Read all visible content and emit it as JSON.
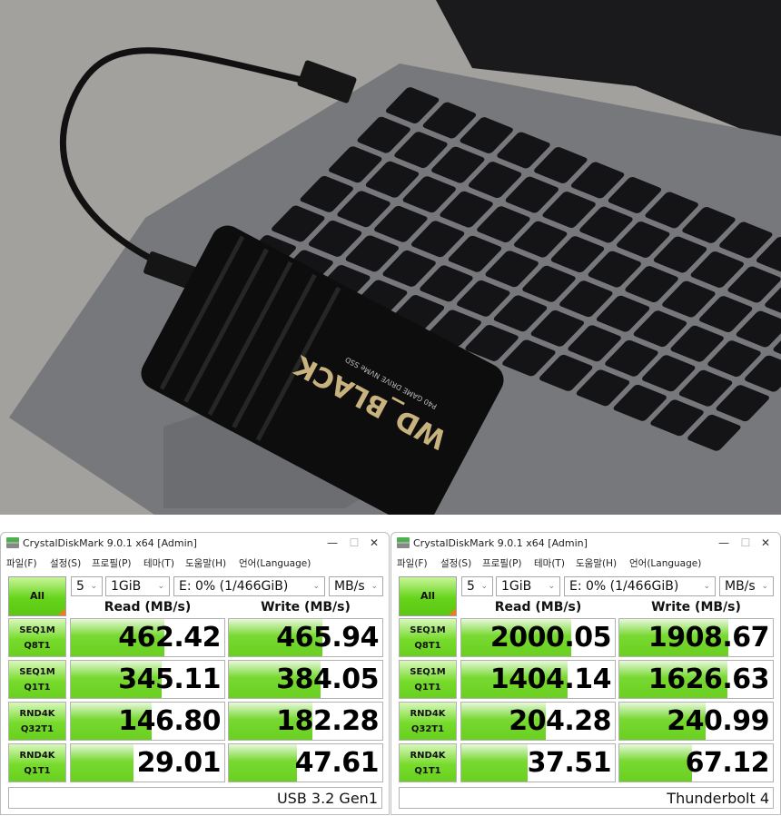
{
  "photo": {
    "ssd_brand": "WD_BLACK",
    "ssd_text": "P40 GAME DRIVE NVMe SSD"
  },
  "windows": [
    {
      "title": "CrystalDiskMark 9.0.1 x64 [Admin]",
      "controls": {
        "minimize": "—",
        "maximize": "☐",
        "close": "✕"
      },
      "menu": [
        "파일(F)",
        "설정(S)",
        "프로필(P)",
        "테마(T)",
        "도움말(H)",
        "언어(Language)"
      ],
      "all_label": "All",
      "count": "5",
      "size": "1GiB",
      "drive": "E: 0% (1/466GiB)",
      "unit": "MB/s",
      "read_header": "Read (MB/s)",
      "write_header": "Write (MB/s)",
      "rows": [
        {
          "label1": "SEQ1M",
          "label2": "Q8T1",
          "read": "462.42",
          "write": "465.94",
          "read_fill": 0.611,
          "write_fill": 0.611
        },
        {
          "label1": "SEQ1M",
          "label2": "Q1T1",
          "read": "345.11",
          "write": "384.05",
          "read_fill": 0.59,
          "write_fill": 0.597
        },
        {
          "label1": "RND4K",
          "label2": "Q32T1",
          "read": "146.80",
          "write": "182.28",
          "read_fill": 0.528,
          "write_fill": 0.543
        },
        {
          "label1": "RND4K",
          "label2": "Q1T1",
          "read": "29.01",
          "write": "47.61",
          "read_fill": 0.41,
          "write_fill": 0.446
        }
      ],
      "comment": "USB 3.2 Gen1"
    },
    {
      "title": "CrystalDiskMark 9.0.1 x64 [Admin]",
      "controls": {
        "minimize": "—",
        "maximize": "☐",
        "close": "✕"
      },
      "menu": [
        "파일(F)",
        "설정(S)",
        "프로필(P)",
        "테마(T)",
        "도움말(H)",
        "언어(Language)"
      ],
      "all_label": "All",
      "count": "5",
      "size": "1GiB",
      "drive": "E: 0% (1/466GiB)",
      "unit": "MB/s",
      "read_header": "Read (MB/s)",
      "write_header": "Write (MB/s)",
      "rows": [
        {
          "label1": "SEQ1M",
          "label2": "Q8T1",
          "read": "2000.05",
          "write": "1908.67",
          "read_fill": 0.717,
          "write_fill": 0.713
        },
        {
          "label1": "SEQ1M",
          "label2": "Q1T1",
          "read": "1404.14",
          "write": "1626.63",
          "read_fill": 0.691,
          "write_fill": 0.702
        },
        {
          "label1": "RND4K",
          "label2": "Q32T1",
          "read": "204.28",
          "write": "240.99",
          "read_fill": 0.552,
          "write_fill": 0.564
        },
        {
          "label1": "RND4K",
          "label2": "Q1T1",
          "read": "37.51",
          "write": "67.12",
          "read_fill": 0.429,
          "write_fill": 0.471
        }
      ],
      "comment": "Thunderbolt 4"
    }
  ],
  "colors": {
    "bar_green": "#6ad020",
    "accent_orange": "#f07c21"
  }
}
